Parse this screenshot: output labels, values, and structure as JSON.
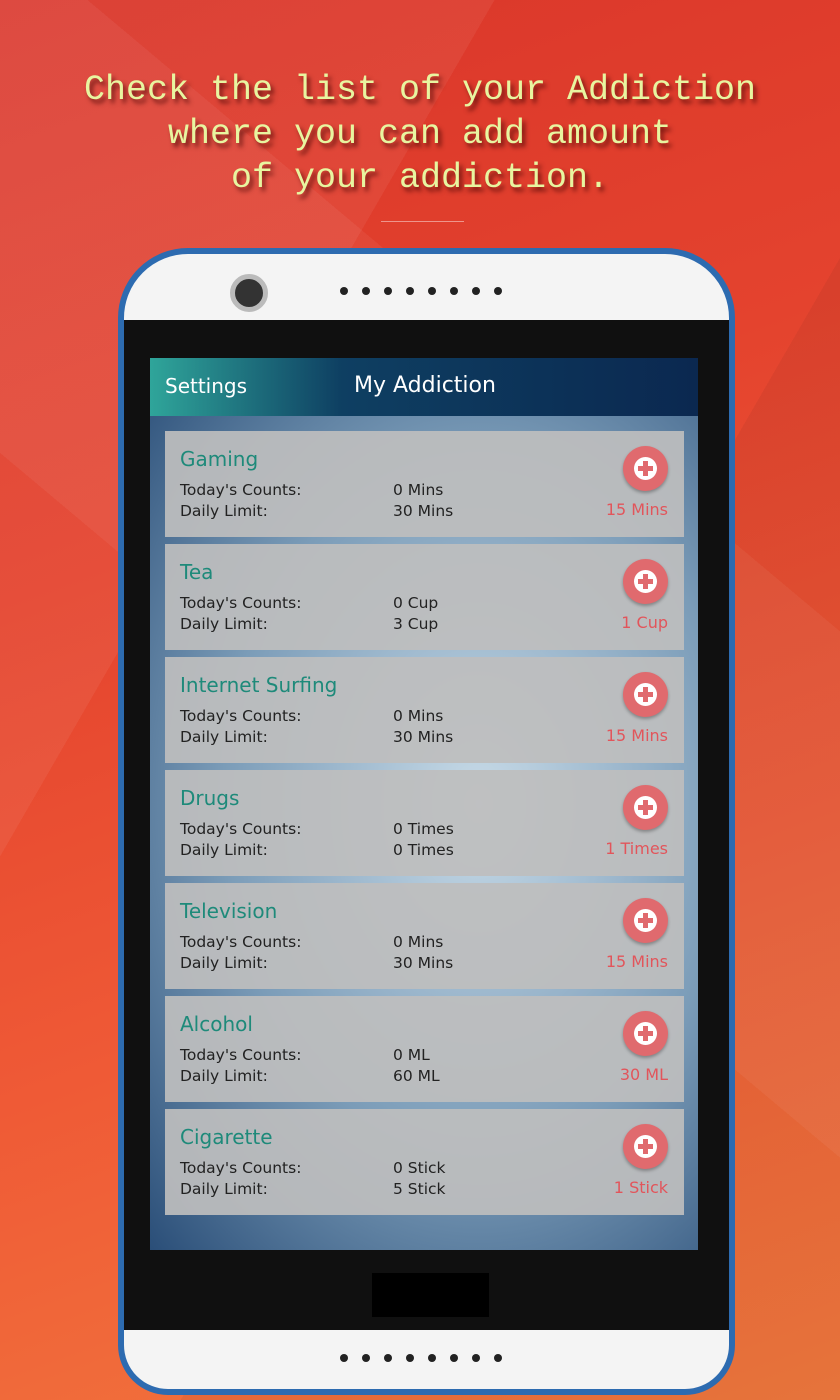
{
  "promo": {
    "headline_lines": [
      "Check the list of your Addiction",
      "where you can add amount",
      "of your addiction."
    ]
  },
  "header": {
    "settings_label": "Settings",
    "title": "My Addiction"
  },
  "labels": {
    "today": "Today's Counts:",
    "limit": "Daily Limit:"
  },
  "items": [
    {
      "name": "Gaming",
      "today": "0 Mins",
      "limit": "30 Mins",
      "add": "15 Mins"
    },
    {
      "name": "Tea",
      "today": "0 Cup",
      "limit": "3 Cup",
      "add": "1 Cup"
    },
    {
      "name": "Internet Surfing",
      "today": "0 Mins",
      "limit": "30 Mins",
      "add": "15 Mins"
    },
    {
      "name": "Drugs",
      "today": "0 Times",
      "limit": "0 Times",
      "add": "1 Times"
    },
    {
      "name": "Television",
      "today": "0 Mins",
      "limit": "30 Mins",
      "add": "15 Mins"
    },
    {
      "name": "Alcohol",
      "today": "0 ML",
      "limit": "60 ML",
      "add": "30 ML"
    },
    {
      "name": "Cigarette",
      "today": "0 Stick",
      "limit": "5 Stick",
      "add": "1 Stick"
    }
  ],
  "colors": {
    "accent": "#1e8a7a",
    "add": "#e06a6e",
    "headline": "#e8f5a0"
  }
}
